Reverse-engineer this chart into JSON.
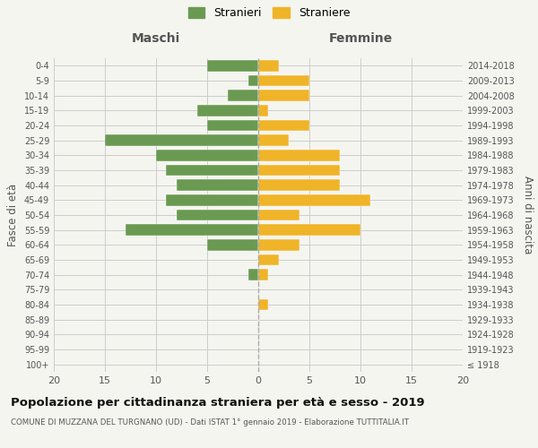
{
  "age_groups": [
    "100+",
    "95-99",
    "90-94",
    "85-89",
    "80-84",
    "75-79",
    "70-74",
    "65-69",
    "60-64",
    "55-59",
    "50-54",
    "45-49",
    "40-44",
    "35-39",
    "30-34",
    "25-29",
    "20-24",
    "15-19",
    "10-14",
    "5-9",
    "0-4"
  ],
  "birth_years": [
    "≤ 1918",
    "1919-1923",
    "1924-1928",
    "1929-1933",
    "1934-1938",
    "1939-1943",
    "1944-1948",
    "1949-1953",
    "1954-1958",
    "1959-1963",
    "1964-1968",
    "1969-1973",
    "1974-1978",
    "1979-1983",
    "1984-1988",
    "1989-1993",
    "1994-1998",
    "1999-2003",
    "2004-2008",
    "2009-2013",
    "2014-2018"
  ],
  "maschi": [
    0,
    0,
    0,
    0,
    0,
    0,
    1,
    0,
    5,
    13,
    8,
    9,
    8,
    9,
    10,
    15,
    5,
    6,
    3,
    1,
    5
  ],
  "femmine": [
    0,
    0,
    0,
    0,
    1,
    0,
    1,
    2,
    4,
    10,
    4,
    11,
    8,
    8,
    8,
    3,
    5,
    1,
    5,
    5,
    2
  ],
  "color_maschi": "#6a9a52",
  "color_femmine": "#f0b429",
  "xlim": 20,
  "title": "Popolazione per cittadinanza straniera per età e sesso - 2019",
  "subtitle": "COMUNE DI MUZZANA DEL TURGNANO (UD) - Dati ISTAT 1° gennaio 2019 - Elaborazione TUTTITALIA.IT",
  "ylabel_left": "Fasce di età",
  "ylabel_right": "Anni di nascita",
  "header_left": "Maschi",
  "header_right": "Femmine",
  "legend_maschi": "Stranieri",
  "legend_femmine": "Straniere",
  "background_color": "#f5f5f0",
  "grid_color": "#cccccc",
  "bar_height": 0.75
}
